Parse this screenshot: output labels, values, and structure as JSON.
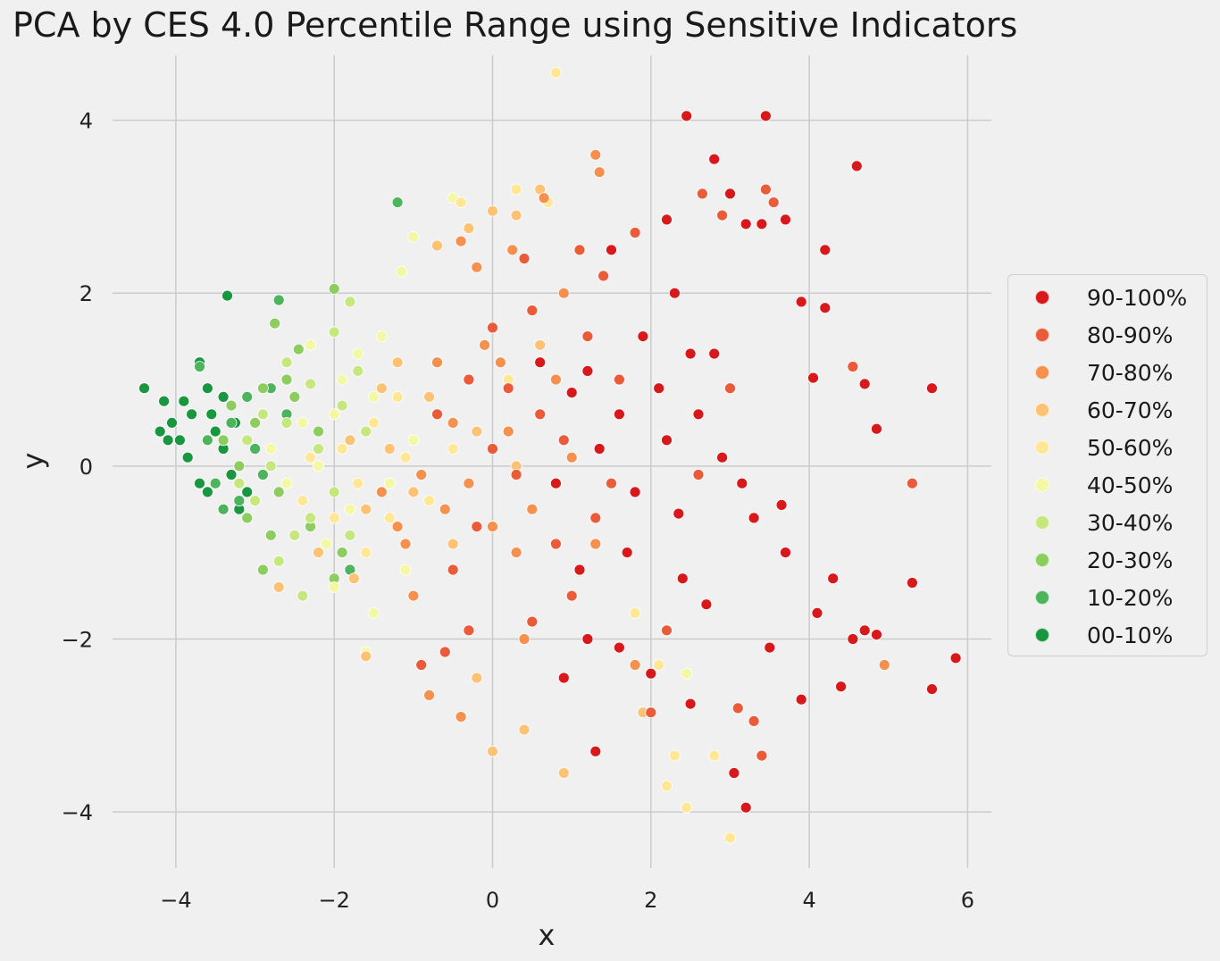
{
  "chart_data": {
    "type": "scatter",
    "title": "PCA by CES 4.0 Percentile Range using Sensitive Indicators",
    "xlabel": "x",
    "ylabel": "y",
    "xlim": [
      -4.8,
      6.3
    ],
    "ylim": [
      -4.65,
      4.75
    ],
    "xticks": [
      -4,
      -2,
      0,
      2,
      4,
      6
    ],
    "yticks": [
      -4,
      -2,
      0,
      2,
      4
    ],
    "xtick_labels": [
      "−4",
      "−2",
      "0",
      "2",
      "4",
      "6"
    ],
    "ytick_labels": [
      "−4",
      "−2",
      "0",
      "2",
      "4"
    ],
    "grid": true,
    "legend_placement": "right, outside plot",
    "series": [
      {
        "name": "90-100%",
        "color": "#d7191c",
        "points": [
          [
            4.6,
            3.47
          ],
          [
            3.45,
            4.05
          ],
          [
            2.45,
            4.05
          ],
          [
            4.2,
            2.5
          ],
          [
            5.55,
            0.9
          ],
          [
            4.85,
            0.43
          ],
          [
            4.7,
            0.95
          ],
          [
            4.05,
            1.02
          ],
          [
            3.9,
            1.9
          ],
          [
            4.2,
            1.83
          ],
          [
            5.85,
            -2.22
          ],
          [
            5.55,
            -2.58
          ],
          [
            5.3,
            -1.35
          ],
          [
            4.4,
            -2.55
          ],
          [
            4.1,
            -1.7
          ],
          [
            4.7,
            -1.9
          ],
          [
            4.85,
            -1.95
          ],
          [
            3.65,
            -0.45
          ],
          [
            3.7,
            -1.0
          ],
          [
            3.2,
            2.8
          ],
          [
            3.4,
            2.8
          ],
          [
            3.0,
            3.15
          ],
          [
            3.7,
            2.85
          ],
          [
            2.8,
            3.55
          ],
          [
            2.2,
            2.85
          ],
          [
            2.3,
            2.0
          ],
          [
            2.5,
            1.3
          ],
          [
            2.1,
            0.9
          ],
          [
            1.6,
            0.6
          ],
          [
            1.8,
            -0.3
          ],
          [
            2.4,
            -1.3
          ],
          [
            2.0,
            -2.4
          ],
          [
            1.1,
            -1.2
          ],
          [
            0.9,
            -2.45
          ],
          [
            1.3,
            -3.3
          ],
          [
            2.5,
            -2.75
          ],
          [
            3.2,
            -3.95
          ],
          [
            3.05,
            -3.55
          ],
          [
            1.6,
            -2.1
          ],
          [
            2.2,
            0.3
          ],
          [
            1.2,
            1.1
          ],
          [
            2.9,
            0.1
          ],
          [
            3.3,
            -0.6
          ],
          [
            2.7,
            -1.6
          ],
          [
            3.5,
            -2.1
          ],
          [
            1.5,
            2.5
          ],
          [
            1.9,
            1.5
          ],
          [
            1.35,
            0.2
          ],
          [
            0.8,
            -0.2
          ],
          [
            2.6,
            0.6
          ],
          [
            3.9,
            -2.7
          ],
          [
            4.3,
            -1.3
          ],
          [
            4.55,
            -2.0
          ],
          [
            3.15,
            -0.2
          ],
          [
            1.7,
            -1.0
          ],
          [
            2.35,
            -0.55
          ],
          [
            1.0,
            0.85
          ],
          [
            2.8,
            1.3
          ],
          [
            0.6,
            1.2
          ],
          [
            1.2,
            -2.0
          ]
        ]
      },
      {
        "name": "80-90%",
        "color": "#ea5b3a",
        "points": [
          [
            3.45,
            3.2
          ],
          [
            2.65,
            3.15
          ],
          [
            3.55,
            3.05
          ],
          [
            5.3,
            -0.2
          ],
          [
            4.55,
            1.15
          ],
          [
            3.1,
            -2.8
          ],
          [
            3.4,
            -3.35
          ],
          [
            3.3,
            -2.95
          ],
          [
            1.4,
            2.2
          ],
          [
            1.1,
            2.5
          ],
          [
            0.5,
            1.8
          ],
          [
            0.2,
            0.9
          ],
          [
            0.0,
            0.2
          ],
          [
            -0.2,
            -0.7
          ],
          [
            -0.5,
            -1.2
          ],
          [
            -0.9,
            -2.3
          ],
          [
            -0.6,
            -2.15
          ],
          [
            -0.3,
            -1.9
          ],
          [
            0.5,
            -1.8
          ],
          [
            0.8,
            -0.9
          ],
          [
            1.5,
            -0.2
          ],
          [
            1.0,
            -1.5
          ],
          [
            0.3,
            -0.1
          ],
          [
            0.9,
            0.3
          ],
          [
            1.2,
            1.5
          ],
          [
            1.8,
            2.7
          ],
          [
            2.0,
            -2.85
          ],
          [
            2.2,
            -1.9
          ],
          [
            0.0,
            1.6
          ],
          [
            -0.3,
            1.0
          ],
          [
            -0.7,
            0.6
          ],
          [
            0.6,
            0.6
          ],
          [
            1.3,
            -0.6
          ],
          [
            2.6,
            -0.1
          ],
          [
            3.0,
            0.9
          ],
          [
            2.9,
            2.9
          ],
          [
            0.4,
            2.4
          ],
          [
            1.6,
            1.0
          ]
        ]
      },
      {
        "name": "70-80%",
        "color": "#f5904f",
        "points": [
          [
            0.65,
            3.1
          ],
          [
            1.3,
            3.6
          ],
          [
            1.35,
            3.4
          ],
          [
            0.25,
            2.5
          ],
          [
            -0.2,
            2.3
          ],
          [
            -0.4,
            2.6
          ],
          [
            0.1,
            1.2
          ],
          [
            -0.5,
            0.5
          ],
          [
            -0.9,
            -0.1
          ],
          [
            -1.1,
            -0.9
          ],
          [
            -0.6,
            -0.5
          ],
          [
            0.3,
            -1.0
          ],
          [
            0.0,
            -0.7
          ],
          [
            -0.3,
            -0.2
          ],
          [
            0.2,
            0.4
          ],
          [
            0.8,
            1.0
          ],
          [
            0.5,
            -0.5
          ],
          [
            1.0,
            0.1
          ],
          [
            -0.8,
            -2.65
          ],
          [
            -0.4,
            -2.9
          ],
          [
            -1.0,
            -1.5
          ],
          [
            -1.4,
            -0.3
          ],
          [
            -0.1,
            1.4
          ],
          [
            0.9,
            2.0
          ],
          [
            4.95,
            -2.3
          ],
          [
            1.3,
            -0.9
          ],
          [
            0.4,
            -2.0
          ],
          [
            1.8,
            -2.3
          ],
          [
            -1.2,
            -0.7
          ],
          [
            -0.7,
            1.2
          ]
        ]
      },
      {
        "name": "60-70%",
        "color": "#fdc274",
        "points": [
          [
            0.6,
            3.2
          ],
          [
            0.0,
            2.95
          ],
          [
            -0.3,
            2.75
          ],
          [
            -0.7,
            2.55
          ],
          [
            0.3,
            2.9
          ],
          [
            -1.6,
            -2.2
          ],
          [
            -1.75,
            -1.3
          ],
          [
            -0.2,
            -2.45
          ],
          [
            0.4,
            -3.05
          ],
          [
            0.0,
            -3.3
          ],
          [
            0.9,
            -3.55
          ],
          [
            1.9,
            -2.85
          ],
          [
            -1.6,
            -0.5
          ],
          [
            -1.3,
            0.2
          ],
          [
            -0.8,
            0.8
          ],
          [
            -0.2,
            0.4
          ],
          [
            0.3,
            0.0
          ],
          [
            -1.0,
            -0.3
          ],
          [
            -1.8,
            0.3
          ],
          [
            -1.4,
            0.9
          ],
          [
            -0.5,
            -0.9
          ],
          [
            0.6,
            1.4
          ],
          [
            -2.2,
            -1.0
          ],
          [
            -2.7,
            -1.4
          ],
          [
            -1.2,
            1.2
          ]
        ]
      },
      {
        "name": "50-60%",
        "color": "#ffe796",
        "points": [
          [
            0.8,
            4.55
          ],
          [
            0.7,
            3.05
          ],
          [
            0.3,
            3.2
          ],
          [
            -0.4,
            3.05
          ],
          [
            2.45,
            -3.95
          ],
          [
            2.3,
            -3.35
          ],
          [
            2.2,
            -3.7
          ],
          [
            2.8,
            -3.35
          ],
          [
            3.0,
            -4.3
          ],
          [
            2.1,
            -2.3
          ],
          [
            -1.3,
            -0.6
          ],
          [
            -1.7,
            -0.2
          ],
          [
            -1.5,
            0.5
          ],
          [
            -1.9,
            0.2
          ],
          [
            -2.3,
            0.1
          ],
          [
            -1.1,
            0.1
          ],
          [
            -0.8,
            -0.4
          ],
          [
            -0.5,
            0.2
          ],
          [
            -1.6,
            -1.0
          ],
          [
            -2.0,
            -0.6
          ],
          [
            -2.4,
            -0.4
          ],
          [
            -1.2,
            0.8
          ],
          [
            0.2,
            1.0
          ],
          [
            1.8,
            -1.7
          ]
        ]
      },
      {
        "name": "40-50%",
        "color": "#f2f8a4",
        "points": [
          [
            -1.0,
            2.65
          ],
          [
            -1.15,
            2.25
          ],
          [
            -0.5,
            3.1
          ],
          [
            -1.6,
            -2.15
          ],
          [
            -1.5,
            -1.7
          ],
          [
            -1.1,
            -1.2
          ],
          [
            -2.0,
            0.6
          ],
          [
            -2.2,
            0.0
          ],
          [
            -1.8,
            -0.5
          ],
          [
            -1.5,
            0.8
          ],
          [
            -1.9,
            1.0
          ],
          [
            -2.4,
            0.5
          ],
          [
            -2.6,
            -0.2
          ],
          [
            -2.1,
            -0.9
          ],
          [
            -1.3,
            -0.2
          ],
          [
            -1.0,
            0.3
          ],
          [
            -1.7,
            1.3
          ],
          [
            -2.3,
            1.4
          ],
          [
            -2.8,
            0.2
          ],
          [
            -1.4,
            1.5
          ],
          [
            2.45,
            -2.4
          ],
          [
            -2.0,
            -1.4
          ]
        ]
      },
      {
        "name": "30-40%",
        "color": "#c6e77d",
        "points": [
          [
            -1.8,
            1.9
          ],
          [
            -2.0,
            1.55
          ],
          [
            -2.3,
            0.95
          ],
          [
            -2.6,
            0.5
          ],
          [
            -2.8,
            0.0
          ],
          [
            -3.0,
            -0.4
          ],
          [
            -2.5,
            -0.8
          ],
          [
            -2.0,
            -0.3
          ],
          [
            -1.6,
            0.4
          ],
          [
            -2.2,
            0.2
          ],
          [
            -1.8,
            -0.8
          ],
          [
            -3.1,
            0.3
          ],
          [
            -2.7,
            -1.1
          ],
          [
            -2.4,
            -1.5
          ],
          [
            -1.7,
            1.1
          ],
          [
            -2.9,
            0.6
          ],
          [
            -3.2,
            -0.2
          ],
          [
            -2.3,
            -0.6
          ],
          [
            -1.9,
            0.7
          ],
          [
            -2.6,
            1.2
          ]
        ]
      },
      {
        "name": "20-30%",
        "color": "#8dcc5f",
        "points": [
          [
            -2.0,
            2.05
          ],
          [
            -2.75,
            1.65
          ],
          [
            -2.45,
            1.35
          ],
          [
            -2.9,
            0.9
          ],
          [
            -3.0,
            0.5
          ],
          [
            -3.2,
            0.0
          ],
          [
            -2.7,
            -0.3
          ],
          [
            -2.3,
            -0.7
          ],
          [
            -2.9,
            -1.2
          ],
          [
            -2.0,
            -1.3
          ],
          [
            -3.4,
            0.3
          ],
          [
            -2.5,
            0.8
          ],
          [
            -3.1,
            -0.6
          ],
          [
            -2.2,
            0.4
          ],
          [
            -2.8,
            -0.8
          ],
          [
            -1.9,
            -1.0
          ],
          [
            -2.6,
            1.0
          ],
          [
            -3.3,
            0.7
          ]
        ]
      },
      {
        "name": "10-20%",
        "color": "#4db35c",
        "points": [
          [
            -1.2,
            3.05
          ],
          [
            -2.7,
            1.92
          ],
          [
            -3.7,
            1.15
          ],
          [
            -3.3,
            0.5
          ],
          [
            -3.0,
            0.2
          ],
          [
            -3.5,
            -0.2
          ],
          [
            -2.6,
            0.6
          ],
          [
            -3.2,
            -0.4
          ],
          [
            -2.8,
            0.9
          ],
          [
            -3.6,
            0.3
          ],
          [
            -3.4,
            -0.5
          ],
          [
            -2.9,
            -0.1
          ],
          [
            -1.8,
            -1.2
          ],
          [
            -3.1,
            0.8
          ]
        ]
      },
      {
        "name": "00-10%",
        "color": "#1a9641",
        "points": [
          [
            -3.35,
            1.97
          ],
          [
            -4.4,
            0.9
          ],
          [
            -4.15,
            0.75
          ],
          [
            -4.05,
            0.5
          ],
          [
            -4.2,
            0.4
          ],
          [
            -3.95,
            0.3
          ],
          [
            -3.8,
            0.6
          ],
          [
            -3.7,
            1.2
          ],
          [
            -3.6,
            0.9
          ],
          [
            -3.85,
            0.1
          ],
          [
            -3.7,
            -0.2
          ],
          [
            -3.5,
            0.4
          ],
          [
            -3.4,
            0.2
          ],
          [
            -3.6,
            -0.3
          ],
          [
            -3.3,
            -0.1
          ],
          [
            -3.25,
            0.5
          ],
          [
            -3.1,
            -0.3
          ],
          [
            -3.4,
            0.8
          ],
          [
            -3.9,
            0.75
          ],
          [
            -4.1,
            0.3
          ],
          [
            -3.55,
            0.6
          ],
          [
            -3.2,
            -0.5
          ]
        ]
      }
    ]
  }
}
